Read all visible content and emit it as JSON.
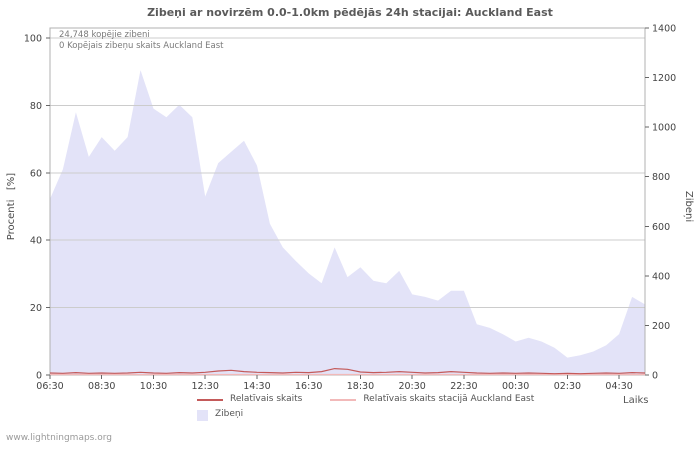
{
  "title": "Zibeņi ar novirzēm 0.0-1.0km pēdējās 24h stacijai: Auckland East",
  "annotations": {
    "total": "24,748 kopējie zibeni",
    "station": "0 Kopējais zibeņu skaits Auckland East"
  },
  "axes": {
    "left_label": "Procenti   [%]",
    "right_label": "Zibeņi",
    "x_label": "Laiks"
  },
  "legend": {
    "relative": "Relatīvais skaits",
    "relative_station": "Relatīvais skaits stacijā Auckland East",
    "area": "Zibeņi"
  },
  "watermark": "www.lightningmaps.org",
  "colors": {
    "area_fill": "#e3e3f8",
    "relative_line": "#c45a5a",
    "relative_station_line": "#f2b9b9",
    "grid": "#cccccc",
    "plot_border": "#b0b0b0",
    "tick_text": "#444444",
    "title_text": "#5a5a5a"
  },
  "chart_data": {
    "type": "area",
    "title": "Zibeņi ar novirzēm 0.0-1.0km pēdējās 24h stacijai: Auckland East",
    "x_start": "06:30",
    "x_step_minutes": 30,
    "x_tick_labels": [
      "06:30",
      "08:30",
      "10:30",
      "12:30",
      "14:30",
      "16:30",
      "18:30",
      "20:30",
      "22:30",
      "00:30",
      "02:30",
      "04:30"
    ],
    "x_tick_every_n_points": 4,
    "xlabel": "Laiks",
    "left_axis": {
      "label": "Procenti [%]",
      "ticks": [
        0,
        20,
        40,
        60,
        80,
        100
      ],
      "range": [
        0,
        103
      ]
    },
    "right_axis": {
      "label": "Zibeņi",
      "ticks": [
        0,
        200,
        400,
        600,
        800,
        1000,
        1200,
        1400
      ],
      "range": [
        0,
        1400
      ]
    },
    "grid": true,
    "legend_position": "bottom",
    "series": [
      {
        "name": "Zibeņi",
        "type": "area",
        "axis": "right",
        "color": "#e3e3f8",
        "values": [
          710,
          830,
          1060,
          880,
          960,
          905,
          960,
          1230,
          1075,
          1040,
          1090,
          1040,
          720,
          855,
          900,
          945,
          845,
          610,
          515,
          460,
          410,
          370,
          515,
          395,
          435,
          380,
          370,
          420,
          325,
          315,
          300,
          340,
          340,
          205,
          190,
          165,
          135,
          150,
          135,
          110,
          70,
          80,
          95,
          120,
          165,
          315,
          285
        ]
      },
      {
        "name": "Relatīvais skaits",
        "type": "line",
        "axis": "left",
        "color": "#c45a5a",
        "values": [
          0.6,
          0.5,
          0.7,
          0.5,
          0.6,
          0.5,
          0.6,
          0.8,
          0.6,
          0.5,
          0.7,
          0.6,
          0.8,
          1.2,
          1.4,
          1.0,
          0.8,
          0.7,
          0.6,
          0.8,
          0.7,
          1.0,
          1.9,
          1.7,
          0.9,
          0.7,
          0.8,
          1.0,
          0.8,
          0.6,
          0.7,
          1.0,
          0.8,
          0.6,
          0.5,
          0.6,
          0.5,
          0.6,
          0.5,
          0.4,
          0.5,
          0.4,
          0.5,
          0.6,
          0.5,
          0.7,
          0.6
        ]
      },
      {
        "name": "Relatīvais skaits stacijā Auckland East",
        "type": "line",
        "axis": "left",
        "color": "#f2b9b9",
        "values": [
          0.15,
          0.15,
          0.15,
          0.15,
          0.15,
          0.15,
          0.15,
          0.15,
          0.15,
          0.15,
          0.15,
          0.15,
          0.15,
          0.15,
          0.15,
          0.15,
          0.15,
          0.15,
          0.15,
          0.15,
          0.15,
          0.15,
          0.15,
          0.15,
          0.15,
          0.15,
          0.15,
          0.15,
          0.15,
          0.15,
          0.15,
          0.15,
          0.15,
          0.15,
          0.15,
          0.15,
          0.15,
          0.15,
          0.15,
          0.15,
          0.15,
          0.15,
          0.15,
          0.15,
          0.15,
          0.15,
          0.15
        ]
      }
    ]
  }
}
